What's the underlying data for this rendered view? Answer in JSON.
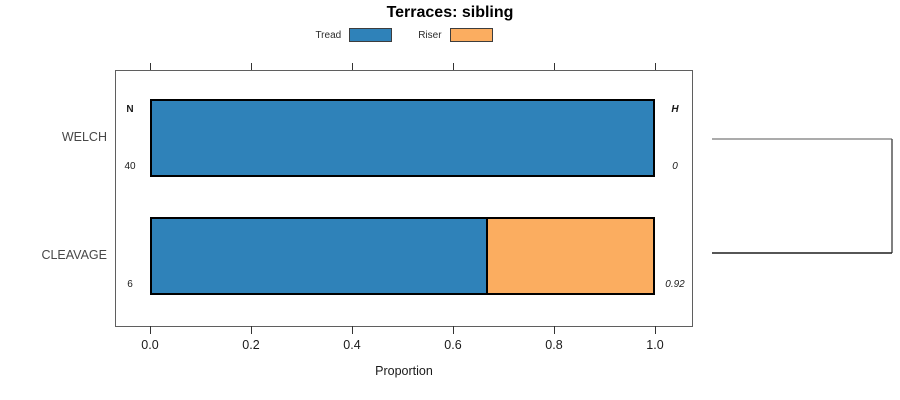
{
  "title": "Terraces: sibling",
  "legend": {
    "items": [
      {
        "label": "Tread",
        "color": "#2f82b9"
      },
      {
        "label": "Riser",
        "color": "#fbad60"
      }
    ]
  },
  "chart_data": {
    "type": "bar",
    "orientation": "horizontal",
    "stacked": true,
    "title": "Terraces: sibling",
    "categories": [
      "WELCH",
      "CLEAVAGE"
    ],
    "series": [
      {
        "name": "Tread",
        "color": "#2f82b9",
        "values": [
          1.0,
          0.667
        ]
      },
      {
        "name": "Riser",
        "color": "#fbad60",
        "values": [
          0.0,
          0.333
        ]
      }
    ],
    "bar_border_color": "#000000",
    "annotations": {
      "left_header": "N",
      "left_values": [
        "40",
        "6"
      ],
      "right_header": "H",
      "right_values": [
        "0",
        "0.92"
      ]
    },
    "xlabel": "Proportion",
    "xlim": [
      0,
      1
    ],
    "xticks": [
      "0.0",
      "0.2",
      "0.4",
      "0.6",
      "0.8",
      "1.0"
    ],
    "grid": false,
    "legend_position": "top",
    "axis_ticks": "top-and-bottom",
    "dendrogram": {
      "type": "bracket",
      "connects": [
        "WELCH",
        "CLEAVAGE"
      ],
      "top_line_color": "#8f8f8f",
      "bottom_line_color": "#1f1f1f",
      "vertical_line_color": "#555555"
    }
  }
}
